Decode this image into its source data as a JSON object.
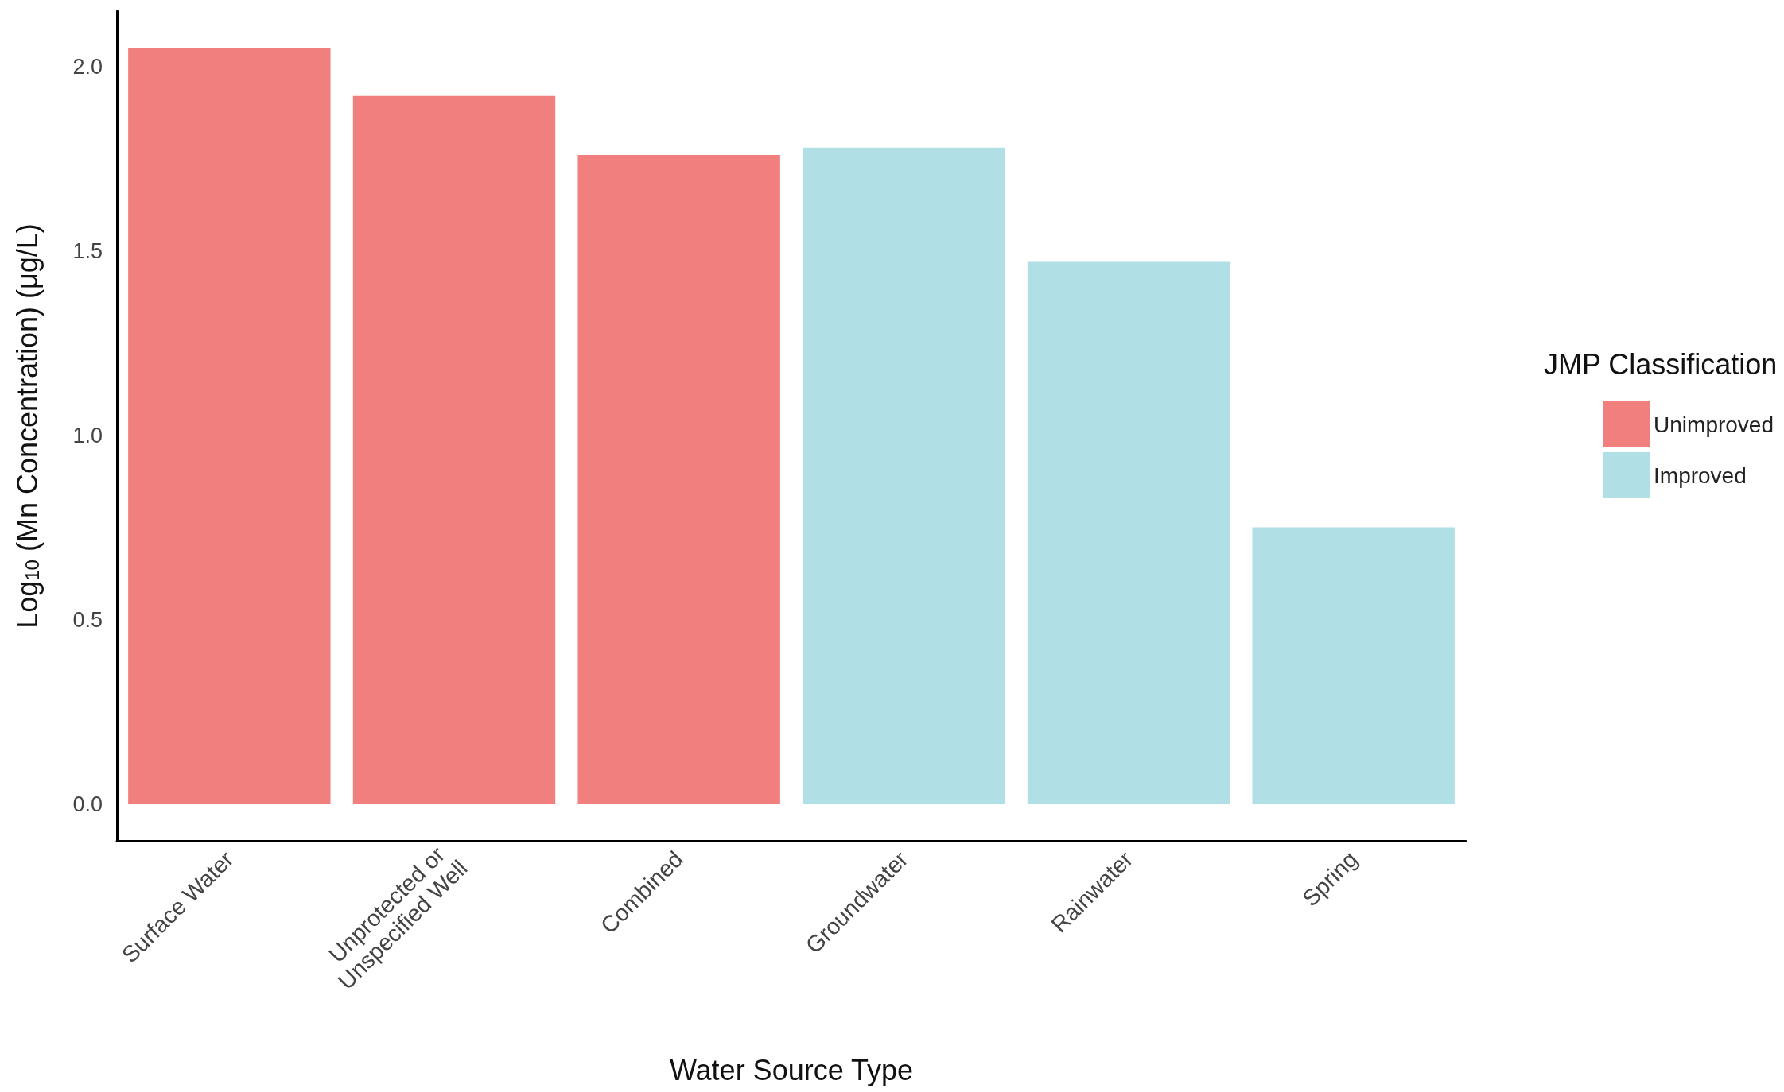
{
  "chart_data": {
    "type": "bar",
    "xlabel": "Water Source Type",
    "ylabel": "Log$_{10}$ (Mn Concentration) (μg/L)",
    "legend_title": "JMP Classification",
    "categories": [
      "Surface Water",
      "Unprotected or Unspecified Well",
      "Combined",
      "Groundwater",
      "Rainwater",
      "Spring"
    ],
    "series": [
      {
        "name": "Unimproved",
        "color": "#f07f7d",
        "values": [
          2.05,
          1.92,
          1.76,
          null,
          null,
          null
        ]
      },
      {
        "name": "Improved",
        "color": "#b0dfe5",
        "values": [
          null,
          null,
          null,
          1.78,
          1.47,
          0.75
        ]
      }
    ],
    "stacked": true,
    "ylim": [
      -0.1,
      2.15
    ],
    "yticks": [
      {
        "value": 0,
        "label": "0.0"
      },
      {
        "value": 0.5,
        "label": "0.5"
      },
      {
        "value": 1,
        "label": "1.0"
      },
      {
        "value": 1.5,
        "label": "1.5"
      },
      {
        "value": 2,
        "label": "2.0"
      }
    ],
    "grid": false,
    "legend": "right"
  }
}
